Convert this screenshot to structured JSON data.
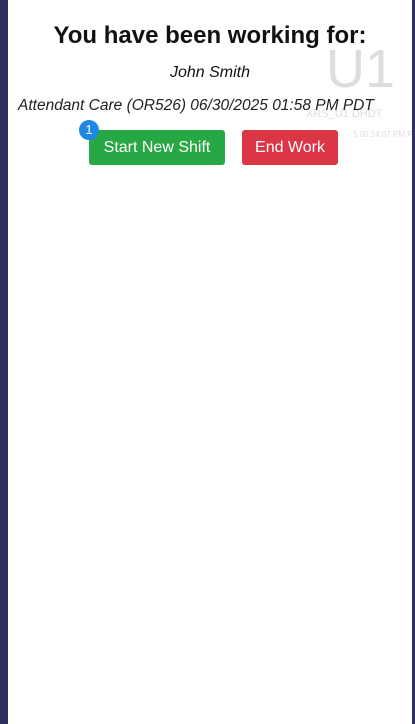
{
  "header": {
    "title": "You have been working for:",
    "client": "John Smith",
    "service": "Attendant Care (OR526) 06/30/2025 01:58 PM PDT"
  },
  "watermark": {
    "large": "U1",
    "small": "XRS_U1 DHDT",
    "time": "5 05:14:07 PM PD"
  },
  "buttons": {
    "start": "Start New Shift",
    "end": "End Work"
  },
  "badge": "1"
}
